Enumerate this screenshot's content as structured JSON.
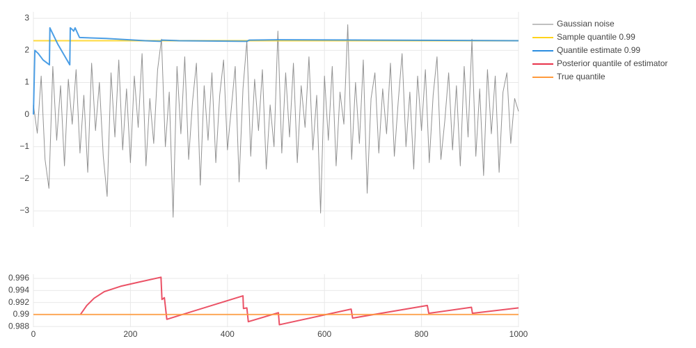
{
  "chart_data": [
    {
      "type": "line",
      "xlim": [
        0,
        1000
      ],
      "xticks": [
        0,
        200,
        400,
        600,
        800,
        1000
      ],
      "ylim": [
        -3.5,
        3.2
      ],
      "yticks": [
        {
          "value": -3,
          "label": "−3"
        },
        {
          "value": -2,
          "label": "−2"
        },
        {
          "value": -1,
          "label": "−1"
        },
        0,
        1,
        2,
        3
      ],
      "grid": true,
      "series": [
        {
          "name": "Gaussian noise",
          "color": "#7f7f7f",
          "width": 1,
          "x": [
            0,
            8,
            16,
            24,
            32,
            40,
            48,
            56,
            64,
            72,
            80,
            88,
            96,
            104,
            112,
            120,
            128,
            136,
            144,
            152,
            160,
            168,
            176,
            184,
            192,
            200,
            208,
            216,
            224,
            232,
            240,
            248,
            256,
            264,
            272,
            280,
            288,
            296,
            304,
            312,
            320,
            328,
            336,
            344,
            352,
            360,
            368,
            376,
            384,
            392,
            400,
            408,
            416,
            424,
            432,
            440,
            448,
            456,
            464,
            472,
            480,
            488,
            496,
            504,
            512,
            520,
            528,
            536,
            544,
            552,
            560,
            568,
            576,
            584,
            592,
            600,
            608,
            616,
            624,
            632,
            640,
            648,
            656,
            664,
            672,
            680,
            688,
            696,
            704,
            712,
            720,
            728,
            736,
            744,
            752,
            760,
            768,
            776,
            784,
            792,
            800,
            808,
            816,
            824,
            832,
            840,
            848,
            856,
            864,
            872,
            880,
            888,
            896,
            904,
            912,
            920,
            928,
            936,
            944,
            952,
            960,
            968,
            976,
            984,
            992,
            1000
          ],
          "values": [
            0.3,
            -0.58,
            1.2,
            -1.4,
            -2.3,
            1.5,
            -0.8,
            0.9,
            -1.6,
            1.1,
            -0.3,
            1.4,
            -1.2,
            0.6,
            -1.8,
            1.6,
            -0.5,
            1.0,
            -1.3,
            -2.55,
            1.3,
            -0.7,
            1.7,
            -1.1,
            0.8,
            -1.5,
            1.2,
            -0.4,
            1.9,
            -1.6,
            0.5,
            -0.9,
            1.4,
            2.35,
            -1.0,
            0.7,
            -3.2,
            1.5,
            -0.6,
            1.8,
            -1.4,
            0.4,
            1.6,
            -2.2,
            0.9,
            -0.8,
            1.3,
            -1.5,
            0.6,
            1.7,
            -1.1,
            0.2,
            1.5,
            -2.1,
            0.8,
            2.3,
            -1.3,
            1.1,
            -0.5,
            1.4,
            -1.7,
            0.3,
            -1.0,
            2.6,
            -1.2,
            1.3,
            -0.7,
            1.6,
            -1.5,
            0.9,
            -0.4,
            1.8,
            -1.1,
            0.6,
            -3.07,
            1.2,
            -0.8,
            1.5,
            -1.6,
            0.7,
            -0.3,
            2.8,
            -1.4,
            1.0,
            -0.9,
            1.7,
            -2.45,
            0.5,
            1.3,
            -1.2,
            0.8,
            -0.6,
            1.6,
            -1.3,
            0.4,
            1.9,
            -1.0,
            0.7,
            -1.7,
            1.2,
            -0.5,
            1.4,
            -1.5,
            0.6,
            1.8,
            -1.4,
            -0.2,
            1.3,
            -1.1,
            0.9,
            -1.6,
            1.5,
            -0.7,
            2.35,
            -1.3,
            0.8,
            -1.9,
            1.4,
            -0.6,
            1.2,
            -1.8,
            0.7,
            1.3,
            -0.9,
            0.5,
            0.1
          ]
        },
        {
          "name": "Sample quantile 0.99",
          "color": "#ffd21a",
          "width": 2,
          "x": [
            0,
            1000
          ],
          "values": [
            2.3,
            2.3
          ]
        },
        {
          "name": "Quantile estimate 0.99",
          "color": "#2b8de0",
          "width": 2,
          "x": [
            0,
            3,
            10,
            20,
            33,
            34,
            50,
            75,
            76,
            80,
            83,
            86,
            95,
            150,
            230,
            262,
            265,
            300,
            440,
            445,
            505,
            700,
            1000
          ],
          "values": [
            0,
            2.0,
            1.9,
            1.7,
            1.55,
            2.7,
            2.2,
            1.55,
            2.7,
            2.65,
            2.6,
            2.7,
            2.4,
            2.37,
            2.3,
            2.28,
            2.32,
            2.3,
            2.28,
            2.32,
            2.33,
            2.32,
            2.3
          ]
        }
      ]
    },
    {
      "type": "line",
      "xlim": [
        0,
        1000
      ],
      "xticks": [
        0,
        200,
        400,
        600,
        800,
        1000
      ],
      "ylim": [
        0.9879,
        0.9967
      ],
      "yticks": [
        0.988,
        0.99,
        0.992,
        0.994,
        0.996
      ],
      "grid": true,
      "series": [
        {
          "name": "Posterior quantile of estimator",
          "color": "#e8334a",
          "width": 2,
          "x": [
            97,
            110,
            125,
            146,
            180,
            218,
            263,
            265,
            270,
            275,
            432,
            433,
            440,
            443,
            505,
            507,
            655,
            658,
            812,
            815,
            903,
            905,
            1000
          ],
          "values": [
            0.99,
            0.9915,
            0.9927,
            0.9938,
            0.9947,
            0.9954,
            0.9962,
            0.9925,
            0.9928,
            0.9892,
            0.9931,
            0.991,
            0.9911,
            0.9888,
            0.9903,
            0.9883,
            0.9909,
            0.9894,
            0.9915,
            0.9902,
            0.9912,
            0.9902,
            0.9911
          ]
        },
        {
          "name": "True quantile",
          "color": "#ff9a3c",
          "width": 2,
          "x": [
            0,
            1000
          ],
          "values": [
            0.99,
            0.99
          ]
        }
      ]
    }
  ]
}
